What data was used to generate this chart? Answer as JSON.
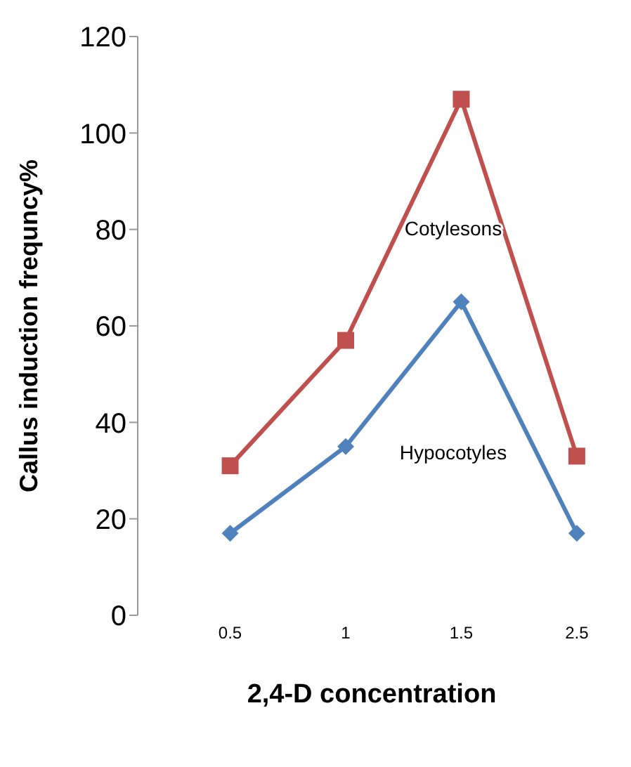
{
  "chart_data": {
    "type": "line",
    "xlabel": "2,4-D concentration",
    "ylabel": "Callus induction frequncy%",
    "categories": [
      "0.5",
      "1",
      "1.5",
      "2.5"
    ],
    "series": [
      {
        "name": "Cotylesons",
        "color": "#c0504d",
        "marker": "square",
        "values": [
          31,
          57,
          107,
          33
        ]
      },
      {
        "name": "Hypocotyles",
        "color": "#4f81bd",
        "marker": "diamond",
        "values": [
          17,
          35,
          65,
          17
        ]
      }
    ],
    "ylim": [
      0,
      120
    ],
    "yticks": [
      0,
      20,
      40,
      60,
      80,
      100,
      120
    ],
    "grid": false,
    "legend": false
  }
}
